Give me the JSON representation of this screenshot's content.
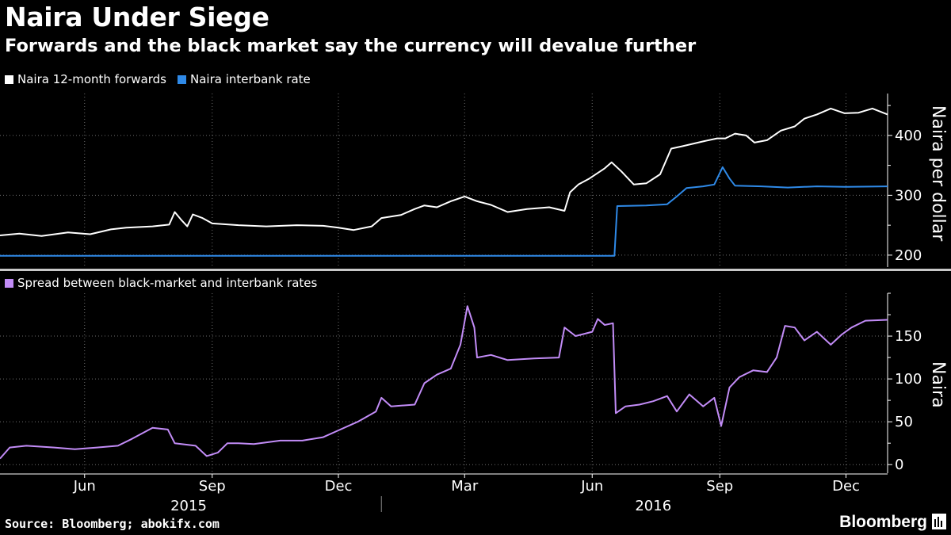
{
  "title": "Naira Under Siege",
  "subtitle": "Forwards and the black market say the currency will devalue further",
  "source": "Source: Bloomberg; abokifx.com",
  "brand": "Bloomberg",
  "colors": {
    "background": "#000000",
    "forwards": "#ffffff",
    "interbank": "#2f8ae8",
    "spread": "#c28cf7",
    "grid": "#6e6e6e"
  },
  "chart_data": [
    {
      "type": "line",
      "ylabel": "Naira per dollar",
      "ylim": [
        180,
        470
      ],
      "yticks": [
        200,
        300,
        400
      ],
      "x_range": [
        "2015-04-01",
        "2016-12-31"
      ],
      "legend": [
        "Naira 12-month forwards",
        "Naira interbank rate"
      ],
      "series": [
        {
          "name": "Naira 12-month forwards",
          "color": "#ffffff",
          "points": [
            [
              "2015-04-01",
              233
            ],
            [
              "2015-04-15",
              236
            ],
            [
              "2015-05-01",
              232
            ],
            [
              "2015-05-20",
              238
            ],
            [
              "2015-06-05",
              235
            ],
            [
              "2015-06-20",
              243
            ],
            [
              "2015-07-01",
              246
            ],
            [
              "2015-07-20",
              248
            ],
            [
              "2015-08-01",
              251
            ],
            [
              "2015-08-05",
              272
            ],
            [
              "2015-08-10",
              258
            ],
            [
              "2015-08-14",
              248
            ],
            [
              "2015-08-18",
              268
            ],
            [
              "2015-08-25",
              262
            ],
            [
              "2015-09-01",
              253
            ],
            [
              "2015-09-20",
              250
            ],
            [
              "2015-10-10",
              248
            ],
            [
              "2015-11-01",
              250
            ],
            [
              "2015-11-20",
              249
            ],
            [
              "2015-12-01",
              246
            ],
            [
              "2015-12-12",
              242
            ],
            [
              "2015-12-25",
              248
            ],
            [
              "2016-01-01",
              262
            ],
            [
              "2016-01-15",
              267
            ],
            [
              "2016-01-25",
              277
            ],
            [
              "2016-02-01",
              283
            ],
            [
              "2016-02-10",
              280
            ],
            [
              "2016-02-20",
              290
            ],
            [
              "2016-03-01",
              298
            ],
            [
              "2016-03-10",
              290
            ],
            [
              "2016-03-20",
              284
            ],
            [
              "2016-04-01",
              272
            ],
            [
              "2016-04-15",
              277
            ],
            [
              "2016-05-01",
              280
            ],
            [
              "2016-05-12",
              274
            ],
            [
              "2016-05-16",
              305
            ],
            [
              "2016-05-22",
              318
            ],
            [
              "2016-05-30",
              328
            ],
            [
              "2016-06-10",
              345
            ],
            [
              "2016-06-15",
              355
            ],
            [
              "2016-06-22",
              340
            ],
            [
              "2016-07-01",
              318
            ],
            [
              "2016-07-10",
              320
            ],
            [
              "2016-07-20",
              335
            ],
            [
              "2016-07-28",
              378
            ],
            [
              "2016-08-05",
              382
            ],
            [
              "2016-08-20",
              390
            ],
            [
              "2016-08-30",
              395
            ],
            [
              "2016-09-05",
              395
            ],
            [
              "2016-09-12",
              403
            ],
            [
              "2016-09-20",
              400
            ],
            [
              "2016-09-26",
              388
            ],
            [
              "2016-10-05",
              392
            ],
            [
              "2016-10-15",
              408
            ],
            [
              "2016-10-25",
              415
            ],
            [
              "2016-11-01",
              428
            ],
            [
              "2016-11-10",
              435
            ],
            [
              "2016-11-20",
              445
            ],
            [
              "2016-11-30",
              437
            ],
            [
              "2016-12-10",
              438
            ],
            [
              "2016-12-20",
              445
            ],
            [
              "2016-12-31",
              435
            ]
          ]
        },
        {
          "name": "Naira interbank rate",
          "color": "#2f8ae8",
          "points": [
            [
              "2015-04-01",
              199
            ],
            [
              "2016-06-17",
              199
            ],
            [
              "2016-06-19",
              282
            ],
            [
              "2016-07-10",
              283
            ],
            [
              "2016-07-25",
              285
            ],
            [
              "2016-08-01",
              298
            ],
            [
              "2016-08-08",
              312
            ],
            [
              "2016-08-20",
              315
            ],
            [
              "2016-08-28",
              318
            ],
            [
              "2016-09-03",
              347
            ],
            [
              "2016-09-08",
              328
            ],
            [
              "2016-09-12",
              316
            ],
            [
              "2016-10-01",
              315
            ],
            [
              "2016-10-20",
              313
            ],
            [
              "2016-11-10",
              315
            ],
            [
              "2016-12-01",
              314
            ],
            [
              "2016-12-31",
              315
            ]
          ]
        }
      ]
    },
    {
      "type": "line",
      "ylabel": "Naira",
      "ylim": [
        -10,
        200
      ],
      "yticks": [
        0,
        50,
        100,
        150
      ],
      "x_range": [
        "2015-04-01",
        "2016-12-31"
      ],
      "legend": [
        "Spread between black-market and interbank rates"
      ],
      "series": [
        {
          "name": "Spread between black-market and interbank rates",
          "color": "#c28cf7",
          "points": [
            [
              "2015-04-01",
              7
            ],
            [
              "2015-04-08",
              20
            ],
            [
              "2015-04-20",
              22
            ],
            [
              "2015-05-10",
              20
            ],
            [
              "2015-05-25",
              18
            ],
            [
              "2015-06-10",
              20
            ],
            [
              "2015-06-25",
              22
            ],
            [
              "2015-07-05",
              30
            ],
            [
              "2015-07-20",
              43
            ],
            [
              "2015-07-31",
              41
            ],
            [
              "2015-08-05",
              25
            ],
            [
              "2015-08-20",
              22
            ],
            [
              "2015-08-28",
              10
            ],
            [
              "2015-09-05",
              14
            ],
            [
              "2015-09-12",
              25
            ],
            [
              "2015-09-20",
              25
            ],
            [
              "2015-10-01",
              24
            ],
            [
              "2015-10-20",
              28
            ],
            [
              "2015-11-05",
              28
            ],
            [
              "2015-11-20",
              32
            ],
            [
              "2015-12-01",
              40
            ],
            [
              "2015-12-15",
              50
            ],
            [
              "2015-12-28",
              62
            ],
            [
              "2016-01-01",
              78
            ],
            [
              "2016-01-08",
              68
            ],
            [
              "2016-01-25",
              70
            ],
            [
              "2016-02-01",
              95
            ],
            [
              "2016-02-10",
              105
            ],
            [
              "2016-02-20",
              112
            ],
            [
              "2016-02-27",
              140
            ],
            [
              "2016-03-03",
              185
            ],
            [
              "2016-03-08",
              160
            ],
            [
              "2016-03-10",
              125
            ],
            [
              "2016-03-20",
              128
            ],
            [
              "2016-04-01",
              122
            ],
            [
              "2016-04-20",
              124
            ],
            [
              "2016-05-08",
              125
            ],
            [
              "2016-05-12",
              160
            ],
            [
              "2016-05-20",
              150
            ],
            [
              "2016-06-01",
              155
            ],
            [
              "2016-06-05",
              170
            ],
            [
              "2016-06-10",
              163
            ],
            [
              "2016-06-16",
              165
            ],
            [
              "2016-06-18",
              60
            ],
            [
              "2016-06-25",
              68
            ],
            [
              "2016-07-05",
              70
            ],
            [
              "2016-07-15",
              74
            ],
            [
              "2016-07-25",
              80
            ],
            [
              "2016-08-01",
              62
            ],
            [
              "2016-08-10",
              82
            ],
            [
              "2016-08-20",
              68
            ],
            [
              "2016-08-28",
              78
            ],
            [
              "2016-09-02",
              45
            ],
            [
              "2016-09-08",
              90
            ],
            [
              "2016-09-15",
              102
            ],
            [
              "2016-09-25",
              110
            ],
            [
              "2016-10-05",
              108
            ],
            [
              "2016-10-12",
              125
            ],
            [
              "2016-10-18",
              162
            ],
            [
              "2016-10-25",
              160
            ],
            [
              "2016-11-01",
              145
            ],
            [
              "2016-11-10",
              155
            ],
            [
              "2016-11-20",
              140
            ],
            [
              "2016-11-28",
              152
            ],
            [
              "2016-12-05",
              160
            ],
            [
              "2016-12-15",
              168
            ],
            [
              "2016-12-31",
              169
            ]
          ]
        }
      ]
    }
  ],
  "x_axis": {
    "tick_labels": [
      {
        "date": "2015-06-01",
        "label": "Jun"
      },
      {
        "date": "2015-09-01",
        "label": "Sep"
      },
      {
        "date": "2015-12-01",
        "label": "Dec"
      },
      {
        "date": "2016-03-01",
        "label": "Mar"
      },
      {
        "date": "2016-06-01",
        "label": "Jun"
      },
      {
        "date": "2016-09-01",
        "label": "Sep"
      },
      {
        "date": "2016-12-01",
        "label": "Dec"
      }
    ],
    "year_labels": [
      {
        "date": "2015-08-15",
        "label": "2015"
      },
      {
        "date": "2016-07-15",
        "label": "2016"
      }
    ]
  }
}
